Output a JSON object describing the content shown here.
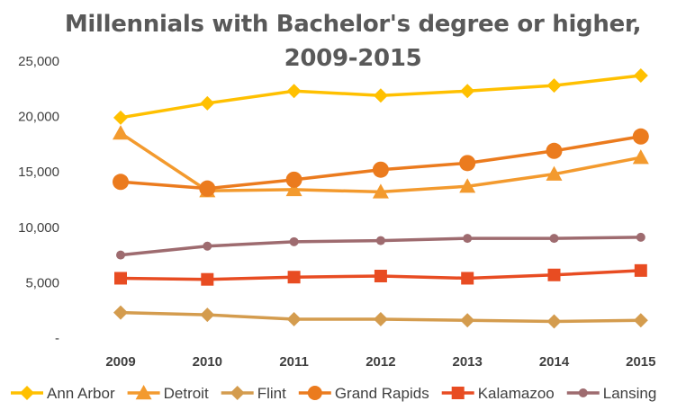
{
  "chart_data": {
    "type": "line",
    "title": [
      "Millennials with Bachelor's degree or higher,",
      "2009-2015"
    ],
    "xlabel": "",
    "ylabel": "",
    "categories": [
      "2009",
      "2010",
      "2011",
      "2012",
      "2013",
      "2014",
      "2015"
    ],
    "ylim": [
      0,
      25000
    ],
    "yticks": [
      0,
      5000,
      10000,
      15000,
      20000,
      25000
    ],
    "ytick_labels": [
      "-",
      "5,000",
      "10,000",
      "15,000",
      "20,000",
      "25,000"
    ],
    "grid": false,
    "legend_position": "bottom",
    "series": [
      {
        "name": "Ann Arbor",
        "color": "#FFC000",
        "marker": "diamond",
        "values": [
          19900,
          21200,
          22300,
          21900,
          22300,
          22800,
          23700
        ]
      },
      {
        "name": "Detroit",
        "color": "#F39A2E",
        "marker": "triangle",
        "values": [
          18500,
          13300,
          13400,
          13200,
          13700,
          14800,
          16300
        ]
      },
      {
        "name": "Flint",
        "color": "#D49C4E",
        "marker": "diamond",
        "values": [
          2300,
          2100,
          1700,
          1700,
          1600,
          1500,
          1600
        ]
      },
      {
        "name": "Grand Rapids",
        "color": "#EB7B1E",
        "marker": "circle",
        "values": [
          14100,
          13500,
          14300,
          15200,
          15800,
          16900,
          18200
        ]
      },
      {
        "name": "Kalamazoo",
        "color": "#E84C22",
        "marker": "square",
        "values": [
          5400,
          5300,
          5500,
          5600,
          5400,
          5700,
          6100
        ]
      },
      {
        "name": "Lansing",
        "color": "#9E6B6F",
        "marker": "circle-small",
        "values": [
          7500,
          8300,
          8700,
          8800,
          9000,
          9000,
          9100
        ]
      }
    ]
  }
}
